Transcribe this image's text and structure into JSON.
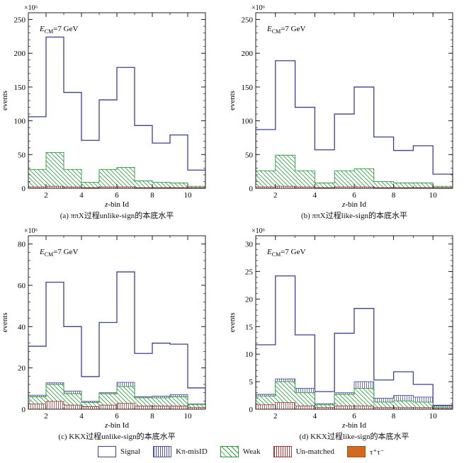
{
  "chart_data": [
    {
      "type": "histogram",
      "title": "",
      "caption": "(a) ππX过程unlike-sign的本底水平",
      "annotation": {
        "label": "E",
        "sub": "CM",
        "rest": "=7 GeV"
      },
      "scale_label": "×10⁶",
      "xlabel_italic": "z",
      "xlabel_rest": "-bin Id",
      "ylabel": "events",
      "xlim": [
        1,
        11
      ],
      "ylim": [
        0,
        260
      ],
      "xticks": [
        2,
        4,
        6,
        8,
        10
      ],
      "yticks": [
        0,
        50,
        100,
        150,
        200,
        250
      ],
      "bins": [
        1,
        2,
        3,
        4,
        5,
        6,
        7,
        8,
        9,
        10,
        11
      ],
      "series": [
        {
          "name": "Signal",
          "values": [
            106,
            224,
            142,
            71,
            131,
            179,
            93,
            67,
            79,
            27
          ]
        },
        {
          "name": "Weak",
          "values": [
            28,
            53,
            28,
            9,
            28,
            31,
            11,
            9,
            8,
            3
          ]
        },
        {
          "name": "Un-matched",
          "values": [
            2,
            3,
            2,
            1,
            2,
            2,
            1,
            1,
            1,
            1
          ]
        }
      ]
    },
    {
      "type": "histogram",
      "title": "",
      "caption": "(b) ππX过程like-sign的本底水平",
      "annotation": {
        "label": "E",
        "sub": "CM",
        "rest": "=7 GeV"
      },
      "scale_label": "×10⁶",
      "xlabel_italic": "z",
      "xlabel_rest": "-bin Id",
      "ylabel": "events",
      "xlim": [
        1,
        11
      ],
      "ylim": [
        0,
        260
      ],
      "xticks": [
        2,
        4,
        6,
        8,
        10
      ],
      "yticks": [
        0,
        50,
        100,
        150,
        200,
        250
      ],
      "bins": [
        1,
        2,
        3,
        4,
        5,
        6,
        7,
        8,
        9,
        10,
        11
      ],
      "series": [
        {
          "name": "Signal",
          "values": [
            87,
            189,
            120,
            57,
            110,
            150,
            76,
            56,
            63,
            21
          ]
        },
        {
          "name": "Weak",
          "values": [
            26,
            49,
            26,
            8,
            26,
            29,
            10,
            8,
            8,
            3
          ]
        },
        {
          "name": "Un-matched",
          "values": [
            2,
            3,
            2,
            1,
            2,
            2,
            1,
            1,
            1,
            1
          ]
        }
      ]
    },
    {
      "type": "histogram",
      "title": "",
      "caption": "(c) KKX过程unlike-sign的本底水平",
      "annotation": {
        "label": "E",
        "sub": "CM",
        "rest": "=7 GeV"
      },
      "scale_label": "×10⁶",
      "xlabel_italic": "z",
      "xlabel_rest": "-bin Id",
      "ylabel": "events",
      "xlim": [
        1,
        11
      ],
      "ylim": [
        0,
        84
      ],
      "xticks": [
        2,
        4,
        6,
        8,
        10
      ],
      "yticks": [
        0,
        20,
        40,
        60,
        80
      ],
      "bins": [
        1,
        2,
        3,
        4,
        5,
        6,
        7,
        8,
        9,
        10,
        11
      ],
      "series": [
        {
          "name": "Signal",
          "values": [
            30.5,
            61.5,
            40,
            15.8,
            42,
            66.5,
            27,
            32,
            31.5,
            10.3
          ]
        },
        {
          "name": "Kπ-misID",
          "values": [
            6.8,
            12.8,
            8.8,
            3.8,
            8,
            13,
            6,
            6.3,
            7,
            2.5
          ]
        },
        {
          "name": "Weak",
          "values": [
            6,
            12,
            7.5,
            3.3,
            7.5,
            11,
            5.5,
            5.5,
            6,
            2.3
          ]
        },
        {
          "name": "Un-matched",
          "values": [
            2.5,
            3.8,
            2,
            1.2,
            2,
            2.8,
            1.5,
            1.5,
            1.5,
            0.8
          ]
        }
      ]
    },
    {
      "type": "histogram",
      "title": "",
      "caption": "(d) KKX过程like-sign的本底水平",
      "annotation": {
        "label": "E",
        "sub": "CM",
        "rest": "=7 GeV"
      },
      "scale_label": "×10⁶",
      "xlabel_italic": "z",
      "xlabel_rest": "-bin Id",
      "ylabel": "events",
      "xlim": [
        1,
        11
      ],
      "ylim": [
        0,
        31.5
      ],
      "xticks": [
        2,
        4,
        6,
        8,
        10
      ],
      "yticks": [
        0,
        5,
        10,
        15,
        20,
        25,
        30
      ],
      "bins": [
        1,
        2,
        3,
        4,
        5,
        6,
        7,
        8,
        9,
        10,
        11
      ],
      "series": [
        {
          "name": "Signal",
          "values": [
            11.7,
            24.2,
            13.5,
            3.2,
            13.8,
            18.3,
            5.3,
            6.8,
            4.5,
            0.7
          ]
        },
        {
          "name": "Kπ-misID",
          "values": [
            2.7,
            5.5,
            3.8,
            1,
            3,
            5,
            2,
            2.5,
            2.2,
            0.6
          ]
        },
        {
          "name": "Weak",
          "values": [
            2.4,
            5,
            3,
            0.8,
            2.7,
            3.8,
            1.3,
            1.5,
            1.3,
            0.3
          ]
        },
        {
          "name": "Un-matched",
          "values": [
            0.8,
            1.2,
            0.6,
            0.3,
            0.6,
            0.6,
            0.3,
            0.3,
            0.3,
            0.1
          ]
        }
      ]
    }
  ],
  "legend": [
    {
      "name": "Signal",
      "key": "signal"
    },
    {
      "name": "Kπ-misID",
      "key": "kpi"
    },
    {
      "name": "Weak",
      "key": "weak"
    },
    {
      "name": "Un-matched",
      "key": "unmatched"
    },
    {
      "name": "τ⁺τ⁻",
      "key": "tau"
    }
  ],
  "colors": {
    "signal": "#3d3f8f",
    "kpi": "#4a52a0",
    "weak": "#2e9a3e",
    "unmatched": "#a03a3a",
    "tau": "#d2691e"
  }
}
